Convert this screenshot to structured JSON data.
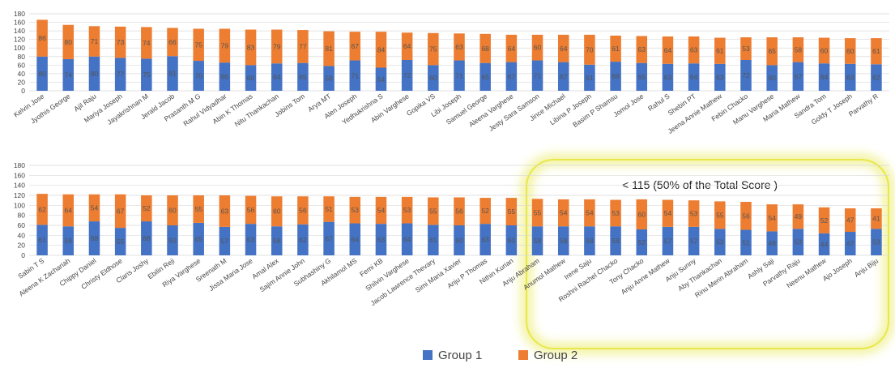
{
  "colors": {
    "group1": "#4472C4",
    "group2": "#ED7D31",
    "highlight": "#E8E84A",
    "grid": "#D9D9D9"
  },
  "legend": {
    "placement": "bottom-center",
    "items": [
      "Group 1",
      "Group 2"
    ]
  },
  "annotation": {
    "text": "< 115 (50% of the Total Score )"
  },
  "chart_data": [
    {
      "type": "bar",
      "stacked": true,
      "ylim": [
        0,
        180
      ],
      "yticks": [
        0,
        20,
        40,
        60,
        80,
        100,
        120,
        140,
        160,
        180
      ],
      "grid": true,
      "categories": [
        "Kelvin Jose",
        "Jyothis George",
        "Ajil Raju",
        "Mariya Joseph",
        "Jayakrishnan M",
        "Jerald Jacob",
        "Prasanth M G",
        "Rahul Vidyadhar",
        "Abin K Thomas",
        "Nitu Thankachan",
        "Jobins Tom",
        "Arya MT",
        "Alen Joseph",
        "Yedhukrishna S",
        "Abin Varghese",
        "Gopika VS",
        "Libi Joseph",
        "Samuel George",
        "Aleena Varghese",
        "Jesty Sara Samson",
        "Jince Michael",
        "Libina P Joseph",
        "Basim P Shamsu",
        "Jomol Jose",
        "Rahul S",
        "Shebin PT",
        "Jeena Annie Mathew",
        "Febin Chacko",
        "Manu Varghese",
        "Maria Mathew",
        "Sandra Tom",
        "Goldy T Joseph",
        "Parvathy R"
      ],
      "series": [
        {
          "name": "Group 1",
          "values": [
            80,
            74,
            80,
            77,
            75,
            81,
            70,
            66,
            60,
            64,
            65,
            58,
            71,
            54,
            72,
            60,
            71,
            65,
            67,
            71,
            67,
            61,
            68,
            65,
            63,
            64,
            63,
            72,
            60,
            67,
            64,
            63,
            62
          ]
        },
        {
          "name": "Group 2",
          "values": [
            86,
            80,
            71,
            73,
            74,
            66,
            75,
            79,
            83,
            79,
            77,
            81,
            67,
            84,
            64,
            75,
            63,
            68,
            64,
            60,
            64,
            70,
            61,
            63,
            64,
            63,
            61,
            53,
            65,
            58,
            60,
            60,
            61
          ]
        }
      ]
    },
    {
      "type": "bar",
      "stacked": true,
      "ylim": [
        0,
        180
      ],
      "yticks": [
        0,
        20,
        40,
        60,
        80,
        100,
        120,
        140,
        160,
        180
      ],
      "grid": true,
      "categories": [
        "Sabin T S",
        "Aleena K Zachariah",
        "Chippy Daniel",
        "Christy Eldhose",
        "Claris Joshy",
        "Ebilin Reji",
        "Riya Varghese",
        "Sreenath M",
        "Jissa Maria Jose",
        "Amal Alex",
        "Sajim Annie John",
        "Subhashiny G",
        "Akhilamol MS",
        "Femi KB",
        "Shilvin Varghese",
        "Jacob Lawrence Thevary",
        "Simi Maria Xavier",
        "Anju P Thomas",
        "Nithin Kurian",
        "Anju Abraham",
        "Anumol Mathew",
        "Irene Saju",
        "Roshni Rachel Chacko",
        "Tony Chacko",
        "Anju Anne Mathew",
        "Anju Sunny",
        "Aby Thankachan",
        "Rinu Merin Abraham",
        "Ashly Saji",
        "Parvathy Raju",
        "Neenu Mathew",
        "Ajo Joseph",
        "Anju Biju"
      ],
      "series": [
        {
          "name": "Group 1",
          "values": [
            61,
            58,
            68,
            55,
            68,
            60,
            65,
            57,
            63,
            58,
            62,
            67,
            64,
            63,
            64,
            61,
            60,
            63,
            60,
            58,
            58,
            58,
            58,
            52,
            57,
            57,
            53,
            51,
            48,
            53,
            44,
            47,
            53
          ]
        },
        {
          "name": "Group 2",
          "values": [
            62,
            64,
            54,
            67,
            52,
            60,
            55,
            63,
            56,
            60,
            56,
            51,
            53,
            54,
            53,
            55,
            56,
            52,
            55,
            55,
            54,
            54,
            53,
            60,
            54,
            53,
            55,
            56,
            54,
            49,
            52,
            47,
            41
          ]
        }
      ]
    }
  ]
}
